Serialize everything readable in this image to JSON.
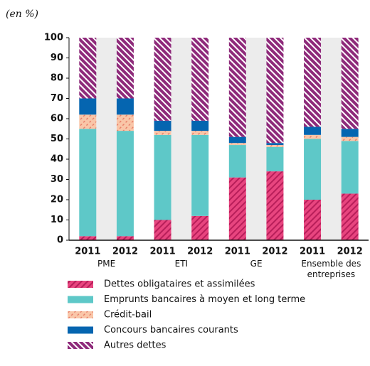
{
  "chart_data": {
    "type": "stacked-bar",
    "subtitle": "(en %)",
    "categories": [
      "2011",
      "2012",
      "2011",
      "2012",
      "2011",
      "2012",
      "2011",
      "2012"
    ],
    "groups": [
      "PME",
      "ETI",
      "GE",
      "Ensemble des entreprises"
    ],
    "series": [
      {
        "name": "Dettes obligataires et assimilées",
        "color": "#e8457f",
        "pattern": "hatch",
        "values": [
          2,
          2,
          10,
          12,
          31,
          34,
          20,
          23
        ]
      },
      {
        "name": "Emprunts bancaires à moyen et long terme",
        "color": "#5ec8c8",
        "values": [
          53,
          52,
          42,
          40,
          16,
          12,
          30,
          26
        ]
      },
      {
        "name": "Crédit-bail",
        "color": "#f9c6a8",
        "pattern": "dash",
        "values": [
          7,
          8,
          2,
          2,
          1,
          1,
          2,
          2
        ]
      },
      {
        "name": "Concours bancaires courants",
        "color": "#0565b0",
        "values": [
          8,
          8,
          5,
          5,
          3,
          1,
          4,
          4
        ]
      },
      {
        "name": "Autres dettes",
        "color": "#8e2a7a",
        "pattern": "hatch",
        "values": [
          30,
          30,
          41,
          41,
          49,
          52,
          44,
          45
        ]
      }
    ],
    "ylim": [
      0,
      100
    ],
    "yticks": [
      0,
      10,
      20,
      30,
      40,
      50,
      60,
      70,
      80,
      90,
      100
    ]
  }
}
